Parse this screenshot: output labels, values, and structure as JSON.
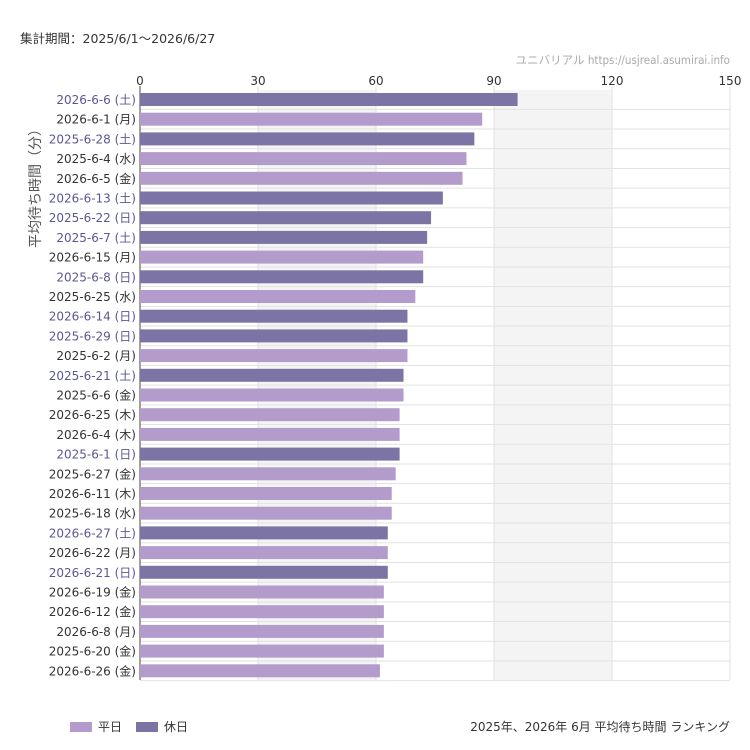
{
  "period_label": "集計期間：2025/6/1～2026/6/27",
  "source_label": "ユニバリアル  https://usjreal.asumirai.info",
  "footer_title": "2025年、2026年 6月 平均待ち時間 ランキング",
  "colors": {
    "weekday": "#b39ccc",
    "holiday": "#7b74a4",
    "holiday_label": "#5b5795",
    "weekday_label": "#333333",
    "band": "#f4f4f4",
    "grid": "#e2e2e2"
  },
  "chart_data": {
    "type": "bar",
    "orientation": "horizontal",
    "title": "2025年、2026年 6月 平均待ち時間 ランキング",
    "ylabel": "平均待ち時間（分）",
    "xlim": [
      0,
      150
    ],
    "xticks": [
      0,
      30,
      60,
      90,
      120,
      150
    ],
    "x_axis_position": "top",
    "grid": true,
    "legend_position": "bottom-left",
    "legend": [
      {
        "name": "平日",
        "key": "weekday"
      },
      {
        "name": "休日",
        "key": "holiday"
      }
    ],
    "categories": [
      "2026-6-6 (土)",
      "2026-6-1 (月)",
      "2025-6-28 (土)",
      "2025-6-4 (水)",
      "2026-6-5 (金)",
      "2026-6-13 (土)",
      "2025-6-22 (日)",
      "2025-6-7 (土)",
      "2026-6-15 (月)",
      "2025-6-8 (日)",
      "2025-6-25 (水)",
      "2026-6-14 (日)",
      "2025-6-29 (日)",
      "2025-6-2 (月)",
      "2025-6-21 (土)",
      "2025-6-6 (金)",
      "2026-6-25 (木)",
      "2026-6-4 (木)",
      "2025-6-1 (日)",
      "2025-6-27 (金)",
      "2026-6-11 (木)",
      "2025-6-18 (水)",
      "2026-6-27 (土)",
      "2026-6-22 (月)",
      "2026-6-21 (日)",
      "2026-6-19 (金)",
      "2026-6-12 (金)",
      "2026-6-8 (月)",
      "2025-6-20 (金)",
      "2026-6-26 (金)"
    ],
    "values": [
      96,
      87,
      85,
      83,
      82,
      77,
      74,
      73,
      72,
      72,
      70,
      68,
      68,
      68,
      67,
      67,
      66,
      66,
      66,
      65,
      64,
      64,
      63,
      63,
      63,
      62,
      62,
      62,
      62,
      61
    ],
    "day_type": [
      "holiday",
      "weekday",
      "holiday",
      "weekday",
      "weekday",
      "holiday",
      "holiday",
      "holiday",
      "weekday",
      "holiday",
      "weekday",
      "holiday",
      "holiday",
      "weekday",
      "holiday",
      "weekday",
      "weekday",
      "weekday",
      "holiday",
      "weekday",
      "weekday",
      "weekday",
      "holiday",
      "weekday",
      "holiday",
      "weekday",
      "weekday",
      "weekday",
      "weekday",
      "weekday"
    ]
  }
}
